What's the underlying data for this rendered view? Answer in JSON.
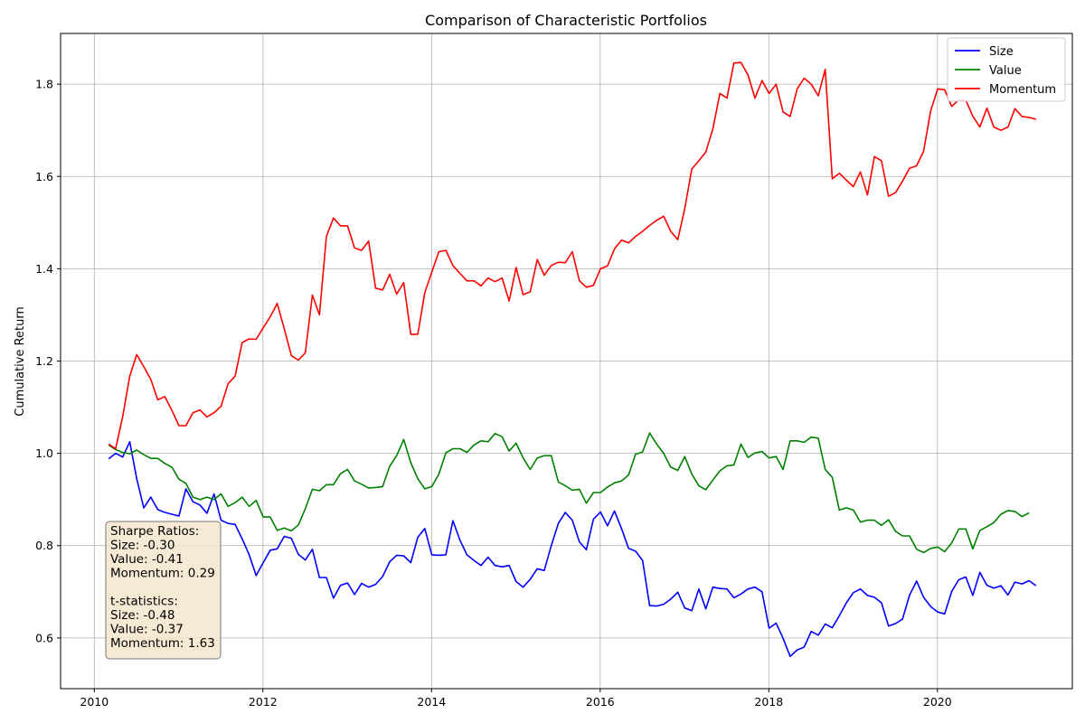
{
  "chart_data": {
    "type": "line",
    "title": "Comparison of Characteristic Portfolios",
    "xlabel": "",
    "ylabel": "Cumulative Return",
    "xlim": [
      2009.6,
      2021.6
    ],
    "ylim": [
      0.49,
      1.91
    ],
    "x_ticks": [
      2010,
      2012,
      2014,
      2016,
      2018,
      2020
    ],
    "x_tick_labels": [
      "2010",
      "2012",
      "2014",
      "2016",
      "2018",
      "2020"
    ],
    "y_ticks": [
      0.6,
      0.8,
      1.0,
      1.2,
      1.4,
      1.6,
      1.8
    ],
    "y_tick_labels": [
      "0.6",
      "0.8",
      "1.0",
      "1.2",
      "1.4",
      "1.6",
      "1.8"
    ],
    "grid": true,
    "legend_position": "top-right",
    "x_start": 2010.17,
    "x_step": 0.08333,
    "series": [
      {
        "name": "Size",
        "color": "#0000ff",
        "values": [
          0.988,
          1.0,
          0.992,
          1.025,
          0.945,
          0.882,
          0.905,
          0.878,
          0.872,
          0.868,
          0.864,
          0.923,
          0.895,
          0.888,
          0.87,
          0.912,
          0.855,
          0.848,
          0.846,
          0.815,
          0.78,
          0.735,
          0.763,
          0.79,
          0.793,
          0.82,
          0.816,
          0.781,
          0.769,
          0.792,
          0.731,
          0.731,
          0.686,
          0.714,
          0.719,
          0.694,
          0.718,
          0.71,
          0.716,
          0.733,
          0.765,
          0.779,
          0.778,
          0.763,
          0.818,
          0.837,
          0.78,
          0.779,
          0.78,
          0.854,
          0.812,
          0.78,
          0.768,
          0.757,
          0.775,
          0.757,
          0.754,
          0.757,
          0.722,
          0.71,
          0.727,
          0.75,
          0.746,
          0.8,
          0.848,
          0.872,
          0.855,
          0.808,
          0.791,
          0.857,
          0.873,
          0.843,
          0.875,
          0.837,
          0.794,
          0.788,
          0.768,
          0.67,
          0.669,
          0.673,
          0.684,
          0.699,
          0.665,
          0.659,
          0.706,
          0.663,
          0.71,
          0.707,
          0.706,
          0.687,
          0.695,
          0.706,
          0.71,
          0.7,
          0.621,
          0.632,
          0.599,
          0.56,
          0.574,
          0.58,
          0.614,
          0.606,
          0.63,
          0.622,
          0.648,
          0.676,
          0.698,
          0.706,
          0.692,
          0.688,
          0.676,
          0.626,
          0.631,
          0.641,
          0.693,
          0.723,
          0.688,
          0.668,
          0.656,
          0.652,
          0.701,
          0.726,
          0.732,
          0.692,
          0.742,
          0.714,
          0.708,
          0.713,
          0.693,
          0.721,
          0.717,
          0.724,
          0.713
        ]
      },
      {
        "name": "Value",
        "color": "#008000",
        "values": [
          1.018,
          1.008,
          1.002,
          0.999,
          1.007,
          0.997,
          0.989,
          0.989,
          0.978,
          0.97,
          0.944,
          0.935,
          0.905,
          0.9,
          0.905,
          0.9,
          0.912,
          0.885,
          0.893,
          0.905,
          0.885,
          0.898,
          0.862,
          0.862,
          0.833,
          0.838,
          0.832,
          0.845,
          0.88,
          0.922,
          0.919,
          0.932,
          0.932,
          0.956,
          0.965,
          0.94,
          0.933,
          0.925,
          0.926,
          0.928,
          0.972,
          0.995,
          1.03,
          0.98,
          0.945,
          0.923,
          0.928,
          0.955,
          1.001,
          1.01,
          1.01,
          1.002,
          1.018,
          1.027,
          1.025,
          1.043,
          1.036,
          1.005,
          1.022,
          0.99,
          0.965,
          0.99,
          0.995,
          0.995,
          0.938,
          0.93,
          0.92,
          0.922,
          0.892,
          0.915,
          0.915,
          0.927,
          0.936,
          0.94,
          0.953,
          0.998,
          1.003,
          1.044,
          1.02,
          1.0,
          0.97,
          0.963,
          0.993,
          0.955,
          0.93,
          0.921,
          0.942,
          0.962,
          0.973,
          0.975,
          1.02,
          0.991,
          1.001,
          1.004,
          0.99,
          0.993,
          0.965,
          1.027,
          1.027,
          1.024,
          1.035,
          1.033,
          0.965,
          0.948,
          0.877,
          0.882,
          0.877,
          0.851,
          0.855,
          0.855,
          0.844,
          0.856,
          0.831,
          0.821,
          0.821,
          0.792,
          0.785,
          0.794,
          0.797,
          0.787,
          0.806,
          0.836,
          0.836,
          0.793,
          0.833,
          0.841,
          0.85,
          0.868,
          0.876,
          0.874,
          0.863,
          0.871
        ]
      },
      {
        "name": "Momentum",
        "color": "#ff0000",
        "values": [
          1.02,
          1.01,
          1.08,
          1.167,
          1.214,
          1.188,
          1.16,
          1.116,
          1.123,
          1.093,
          1.06,
          1.06,
          1.088,
          1.094,
          1.079,
          1.088,
          1.102,
          1.151,
          1.167,
          1.24,
          1.248,
          1.247,
          1.272,
          1.296,
          1.325,
          1.27,
          1.212,
          1.202,
          1.218,
          1.343,
          1.3,
          1.47,
          1.51,
          1.493,
          1.493,
          1.445,
          1.44,
          1.46,
          1.358,
          1.354,
          1.388,
          1.345,
          1.37,
          1.258,
          1.258,
          1.348,
          1.393,
          1.437,
          1.44,
          1.407,
          1.39,
          1.374,
          1.374,
          1.363,
          1.38,
          1.372,
          1.38,
          1.33,
          1.403,
          1.344,
          1.35,
          1.42,
          1.386,
          1.407,
          1.414,
          1.413,
          1.437,
          1.374,
          1.36,
          1.364,
          1.4,
          1.406,
          1.443,
          1.462,
          1.456,
          1.47,
          1.481,
          1.494,
          1.505,
          1.514,
          1.481,
          1.463,
          1.53,
          1.616,
          1.634,
          1.653,
          1.703,
          1.78,
          1.77,
          1.846,
          1.847,
          1.82,
          1.77,
          1.808,
          1.78,
          1.8,
          1.74,
          1.73,
          1.79,
          1.813,
          1.8,
          1.775,
          1.832,
          1.595,
          1.607,
          1.592,
          1.578,
          1.61,
          1.56,
          1.643,
          1.634,
          1.557,
          1.565,
          1.59,
          1.618,
          1.623,
          1.655,
          1.742,
          1.79,
          1.788,
          1.752,
          1.766,
          1.765,
          1.731,
          1.707,
          1.748,
          1.707,
          1.7,
          1.707,
          1.747,
          1.73,
          1.728,
          1.724
        ]
      }
    ],
    "annotation_lines": [
      "Sharpe Ratios:",
      "Size: -0.30",
      "Value: -0.41",
      "Momentum: 0.29",
      "",
      "t-statistics:",
      "Size: -0.48",
      "Value: -0.37",
      "Momentum: 1.63"
    ],
    "annotation_bg": "#f5e6cc"
  }
}
